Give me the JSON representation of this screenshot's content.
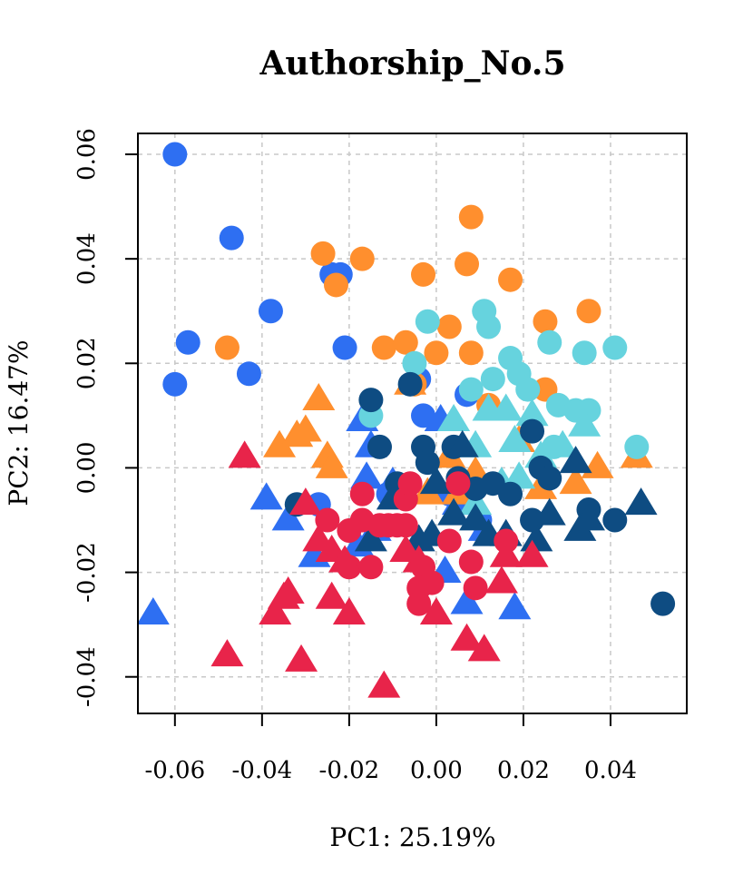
{
  "chart_data": {
    "type": "scatter",
    "title": "Authorship_No.5",
    "xlabel": "PC1: 25.19%",
    "ylabel": "PC2: 16.47%",
    "xlim": [
      -0.0685,
      0.0575
    ],
    "ylim": [
      -0.047,
      0.064
    ],
    "x_ticks": [
      -0.06,
      -0.04,
      -0.02,
      0.0,
      0.02,
      0.04
    ],
    "x_tick_labels": [
      "-0.06",
      "-0.04",
      "-0.02",
      "0.00",
      "0.02",
      "0.04"
    ],
    "y_ticks": [
      -0.04,
      -0.02,
      0.0,
      0.02,
      0.04,
      0.06
    ],
    "y_tick_labels": [
      "-0.04",
      "-0.02",
      "0.00",
      "0.02",
      "0.04",
      "0.06"
    ],
    "grid": true,
    "grid_style": "dotted",
    "series": [
      {
        "color": "#2E6FF2",
        "shape": "circle",
        "points": [
          [
            -0.06,
            0.06
          ],
          [
            -0.047,
            0.044
          ],
          [
            -0.057,
            0.024
          ],
          [
            -0.06,
            0.016
          ],
          [
            -0.038,
            0.03
          ],
          [
            -0.043,
            0.018
          ],
          [
            -0.024,
            0.037
          ],
          [
            -0.022,
            0.037
          ],
          [
            -0.021,
            0.023
          ],
          [
            -0.027,
            -0.007
          ],
          [
            -0.004,
            0.017
          ],
          [
            -0.003,
            0.01
          ],
          [
            0.007,
            0.014
          ],
          [
            -0.011,
            -0.005
          ],
          [
            0.01,
            -0.01
          ],
          [
            0.003,
            -0.005
          ]
        ]
      },
      {
        "color": "#2E6FF2",
        "shape": "triangle",
        "points": [
          [
            -0.065,
            -0.028
          ],
          [
            -0.039,
            -0.006
          ],
          [
            -0.034,
            -0.01
          ],
          [
            -0.028,
            -0.017
          ],
          [
            -0.017,
            0.009
          ],
          [
            -0.015,
            0.004
          ],
          [
            -0.016,
            -0.002
          ],
          [
            -0.014,
            -0.012
          ],
          [
            -0.01,
            -0.003
          ],
          [
            0.001,
            0.009
          ],
          [
            0.002,
            -0.02
          ],
          [
            0.007,
            -0.026
          ],
          [
            0.018,
            -0.027
          ],
          [
            0.011,
            -0.012
          ],
          [
            0.005,
            -0.007
          ],
          [
            -0.018,
            -0.015
          ]
        ]
      },
      {
        "color": "#FF8F2E",
        "shape": "circle",
        "points": [
          [
            -0.048,
            0.023
          ],
          [
            -0.026,
            0.041
          ],
          [
            -0.023,
            0.035
          ],
          [
            -0.017,
            0.04
          ],
          [
            -0.012,
            0.023
          ],
          [
            -0.007,
            0.024
          ],
          [
            -0.003,
            0.037
          ],
          [
            0.0,
            0.022
          ],
          [
            0.003,
            0.027
          ],
          [
            0.007,
            0.039
          ],
          [
            0.008,
            0.048
          ],
          [
            0.008,
            0.022
          ],
          [
            0.017,
            0.036
          ],
          [
            0.025,
            0.028
          ],
          [
            0.035,
            0.03
          ],
          [
            0.025,
            0.015
          ],
          [
            -0.005,
            0.016
          ],
          [
            0.012,
            0.012
          ]
        ]
      },
      {
        "color": "#FF8F2E",
        "shape": "triangle",
        "points": [
          [
            -0.027,
            0.013
          ],
          [
            -0.036,
            0.004
          ],
          [
            -0.032,
            0.006
          ],
          [
            -0.03,
            0.007
          ],
          [
            -0.025,
            0.002
          ],
          [
            -0.024,
            0.0
          ],
          [
            -0.006,
            0.016
          ],
          [
            0.003,
            0.002
          ],
          [
            0.009,
            -0.001
          ],
          [
            0.005,
            -0.005
          ],
          [
            0.024,
            -0.004
          ],
          [
            0.032,
            -0.003
          ],
          [
            0.037,
            0.0
          ],
          [
            0.046,
            0.002
          ],
          [
            0.019,
            0.005
          ],
          [
            -0.002,
            -0.005
          ]
        ]
      },
      {
        "color": "#66D3DE",
        "shape": "circle",
        "points": [
          [
            -0.002,
            0.028
          ],
          [
            0.011,
            0.03
          ],
          [
            0.012,
            0.027
          ],
          [
            0.017,
            0.021
          ],
          [
            0.019,
            0.018
          ],
          [
            0.026,
            0.024
          ],
          [
            0.034,
            0.022
          ],
          [
            0.041,
            0.023
          ],
          [
            0.013,
            0.017
          ],
          [
            0.021,
            0.015
          ],
          [
            0.028,
            0.012
          ],
          [
            0.032,
            0.011
          ],
          [
            0.035,
            0.011
          ],
          [
            0.046,
            0.004
          ],
          [
            0.027,
            0.004
          ],
          [
            -0.005,
            0.02
          ],
          [
            0.008,
            0.015
          ],
          [
            -0.015,
            0.01
          ]
        ]
      },
      {
        "color": "#66D3DE",
        "shape": "triangle",
        "points": [
          [
            0.004,
            0.009
          ],
          [
            0.009,
            0.004
          ],
          [
            0.012,
            0.011
          ],
          [
            0.016,
            0.011
          ],
          [
            0.018,
            0.005
          ],
          [
            0.022,
            0.01
          ],
          [
            0.029,
            0.004
          ],
          [
            0.034,
            0.008
          ],
          [
            0.015,
            -0.003
          ],
          [
            0.019,
            -0.002
          ],
          [
            0.009,
            -0.007
          ],
          [
            0.024,
            0.002
          ]
        ]
      },
      {
        "color": "#0E4C82",
        "shape": "circle",
        "points": [
          [
            -0.015,
            0.013
          ],
          [
            -0.006,
            0.016
          ],
          [
            -0.013,
            0.004
          ],
          [
            -0.009,
            -0.003
          ],
          [
            -0.003,
            0.004
          ],
          [
            -0.002,
            0.001
          ],
          [
            0.004,
            0.004
          ],
          [
            0.005,
            -0.002
          ],
          [
            0.009,
            -0.004
          ],
          [
            0.013,
            -0.003
          ],
          [
            0.017,
            -0.005
          ],
          [
            0.022,
            0.007
          ],
          [
            0.024,
            0.0
          ],
          [
            0.026,
            -0.002
          ],
          [
            0.022,
            -0.01
          ],
          [
            0.035,
            -0.008
          ],
          [
            0.041,
            -0.01
          ],
          [
            0.052,
            -0.026
          ],
          [
            -0.032,
            -0.007
          ]
        ]
      },
      {
        "color": "#0E4C82",
        "shape": "triangle",
        "points": [
          [
            -0.01,
            -0.006
          ],
          [
            0.0,
            -0.003
          ],
          [
            0.006,
            0.004
          ],
          [
            0.004,
            -0.009
          ],
          [
            0.009,
            -0.01
          ],
          [
            0.012,
            -0.013
          ],
          [
            0.016,
            -0.013
          ],
          [
            0.023,
            -0.014
          ],
          [
            0.026,
            -0.009
          ],
          [
            0.032,
            0.001
          ],
          [
            0.033,
            -0.012
          ],
          [
            0.035,
            -0.01
          ],
          [
            0.047,
            -0.007
          ],
          [
            -0.004,
            -0.014
          ],
          [
            -0.001,
            -0.013
          ],
          [
            -0.015,
            -0.014
          ]
        ]
      },
      {
        "color": "#E8244A",
        "shape": "circle",
        "points": [
          [
            -0.025,
            -0.01
          ],
          [
            -0.017,
            -0.005
          ],
          [
            -0.02,
            -0.012
          ],
          [
            -0.017,
            -0.01
          ],
          [
            -0.013,
            -0.011
          ],
          [
            -0.011,
            -0.011
          ],
          [
            -0.009,
            -0.011
          ],
          [
            -0.007,
            -0.011
          ],
          [
            -0.007,
            -0.006
          ],
          [
            -0.006,
            -0.003
          ],
          [
            -0.003,
            -0.019
          ],
          [
            -0.004,
            -0.023
          ],
          [
            -0.004,
            -0.026
          ],
          [
            0.003,
            -0.014
          ],
          [
            0.005,
            -0.003
          ],
          [
            0.008,
            -0.018
          ],
          [
            0.009,
            -0.023
          ],
          [
            0.016,
            -0.014
          ],
          [
            -0.02,
            -0.019
          ],
          [
            -0.015,
            -0.019
          ],
          [
            -0.001,
            -0.022
          ]
        ]
      },
      {
        "color": "#E8244A",
        "shape": "triangle",
        "points": [
          [
            -0.044,
            0.002
          ],
          [
            -0.03,
            -0.007
          ],
          [
            -0.024,
            -0.016
          ],
          [
            -0.027,
            -0.014
          ],
          [
            -0.021,
            -0.018
          ],
          [
            -0.034,
            -0.024
          ],
          [
            -0.035,
            -0.025
          ],
          [
            -0.037,
            -0.028
          ],
          [
            -0.024,
            -0.025
          ],
          [
            -0.02,
            -0.028
          ],
          [
            -0.048,
            -0.036
          ],
          [
            -0.031,
            -0.037
          ],
          [
            -0.012,
            -0.042
          ],
          [
            0.0,
            -0.028
          ],
          [
            0.007,
            -0.033
          ],
          [
            0.011,
            -0.035
          ],
          [
            0.015,
            -0.022
          ],
          [
            0.016,
            -0.017
          ],
          [
            0.022,
            -0.017
          ],
          [
            -0.007,
            -0.016
          ],
          [
            -0.004,
            -0.018
          ]
        ]
      }
    ]
  }
}
